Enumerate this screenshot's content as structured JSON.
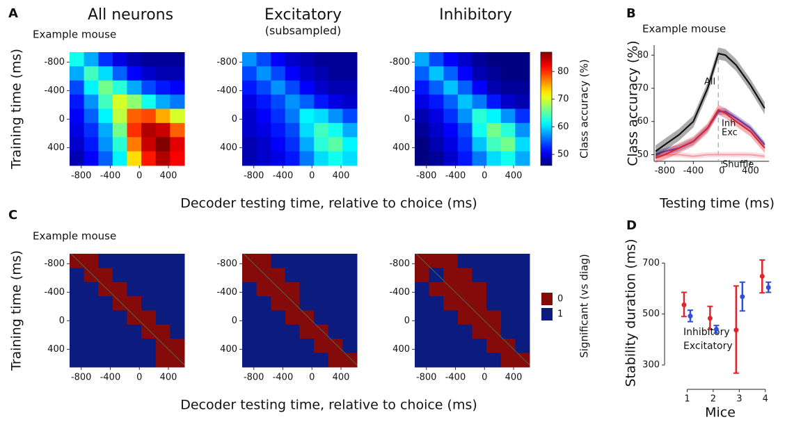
{
  "chart_data": [
    {
      "type": "heatmap",
      "panel": "A",
      "title": "All neurons",
      "title_color": "#000000",
      "annotation": "Example mouse",
      "ylabel": "Training time (ms)",
      "xlim": [
        -960,
        620
      ],
      "ylim": [
        -940,
        650
      ],
      "xticks": [
        -800,
        -400,
        0,
        400
      ],
      "yticks": [
        -800,
        -400,
        0,
        400
      ],
      "colormap": "jet",
      "zlim": [
        46,
        87
      ],
      "z": [
        [
          62,
          58,
          53,
          50,
          48,
          47,
          47,
          47
        ],
        [
          58,
          64,
          60,
          55,
          51,
          49,
          48,
          48
        ],
        [
          54,
          61,
          66,
          63,
          58,
          54,
          52,
          51
        ],
        [
          52,
          57,
          64,
          70,
          67,
          62,
          58,
          56
        ],
        [
          51,
          55,
          61,
          69,
          78,
          79,
          75,
          70
        ],
        [
          50,
          53,
          58,
          66,
          80,
          85,
          84,
          78
        ],
        [
          49,
          52,
          57,
          63,
          77,
          84,
          87,
          83
        ],
        [
          48,
          51,
          55,
          61,
          73,
          81,
          85,
          82
        ]
      ]
    },
    {
      "type": "heatmap",
      "title": "Excitatory",
      "subtitle": "(subsampled)",
      "title_color": "#3b45b0",
      "xlabel": "Decoder testing time, relative to choice (ms)",
      "xlim": [
        -960,
        620
      ],
      "ylim": [
        -940,
        650
      ],
      "xticks": [
        -800,
        -400,
        0,
        400
      ],
      "yticks": [
        -800,
        -400,
        0,
        400
      ],
      "colormap": "jet",
      "zlim": [
        46,
        87
      ],
      "z": [
        [
          57,
          54,
          51,
          49,
          48,
          47,
          47,
          47
        ],
        [
          54,
          57,
          54,
          51,
          49,
          48,
          47,
          47
        ],
        [
          52,
          54,
          57,
          54,
          51,
          49,
          48,
          48
        ],
        [
          50,
          52,
          54,
          57,
          55,
          52,
          50,
          49
        ],
        [
          49,
          51,
          53,
          56,
          61,
          60,
          57,
          54
        ],
        [
          49,
          50,
          52,
          54,
          60,
          64,
          62,
          58
        ],
        [
          48,
          49,
          51,
          53,
          58,
          63,
          65,
          61
        ],
        [
          48,
          49,
          50,
          52,
          56,
          60,
          62,
          60
        ]
      ]
    },
    {
      "type": "heatmap",
      "title": "Inhibitory",
      "title_color": "#e0242b",
      "xlim": [
        -960,
        620
      ],
      "ylim": [
        -940,
        650
      ],
      "xticks": [
        -800,
        -400,
        0,
        400
      ],
      "yticks": [
        -800,
        -400,
        0,
        400
      ],
      "colormap": "jet",
      "zlim": [
        46,
        87
      ],
      "z": [
        [
          58,
          54,
          51,
          49,
          47,
          46,
          46,
          46
        ],
        [
          55,
          59,
          55,
          51,
          48,
          47,
          46,
          46
        ],
        [
          52,
          55,
          59,
          55,
          51,
          48,
          47,
          47
        ],
        [
          50,
          52,
          55,
          59,
          56,
          52,
          49,
          48
        ],
        [
          48,
          50,
          53,
          57,
          63,
          61,
          57,
          53
        ],
        [
          47,
          49,
          51,
          54,
          62,
          66,
          63,
          57
        ],
        [
          46,
          48,
          50,
          53,
          59,
          64,
          66,
          60
        ],
        [
          46,
          47,
          49,
          52,
          56,
          60,
          62,
          58
        ]
      ]
    },
    {
      "type": "colorbar",
      "label": "Class accuracy (%)",
      "colormap": "jet",
      "zlim": [
        46,
        87
      ],
      "ticks": [
        50,
        60,
        70,
        80
      ]
    },
    {
      "type": "line",
      "panel": "B",
      "annotation": "Example mouse",
      "xlabel": "Testing time (ms)",
      "ylabel": "Class accuracy (%)",
      "xlim": [
        -950,
        660
      ],
      "ylim": [
        48,
        83
      ],
      "xticks": [
        -800,
        -400,
        0,
        400
      ],
      "yticks": [
        50,
        60,
        70,
        80
      ],
      "x": [
        -930,
        -800,
        -600,
        -400,
        -200,
        -50,
        50,
        200,
        400,
        600
      ],
      "series": [
        {
          "name": "All",
          "color": "#111111",
          "values": [
            51,
            53,
            56,
            60,
            70,
            80.5,
            80,
            77,
            71,
            64
          ],
          "errors": [
            1.8,
            1.8,
            1.8,
            1.8,
            1.8,
            1.8,
            1.8,
            1.8,
            1.8,
            1.8
          ]
        },
        {
          "name": "Inh",
          "color": "#e0242b",
          "values": [
            49,
            50,
            52,
            54,
            58,
            63.5,
            62.5,
            60,
            57,
            52
          ],
          "errors": [
            1.5,
            1.5,
            1.5,
            1.5,
            1.5,
            1.5,
            1.5,
            1.5,
            1.5,
            1.5
          ]
        },
        {
          "name": "Exc",
          "color": "#3b45c8",
          "values": [
            50,
            51,
            52,
            54,
            58,
            63,
            63,
            61,
            58,
            53
          ],
          "errors": [
            1,
            1,
            1,
            1,
            1,
            1,
            1,
            1,
            1,
            1
          ]
        },
        {
          "name": "Shuffle",
          "color": "#f2a0a8",
          "values": [
            49.5,
            50,
            50,
            49.5,
            50,
            50,
            50,
            50,
            50,
            49.5
          ],
          "errors": [
            0.8,
            0.8,
            0.8,
            0.8,
            0.8,
            0.8,
            0.8,
            0.8,
            0.8,
            0.8
          ]
        }
      ]
    },
    {
      "type": "heatmap",
      "panel": "C",
      "annotation": "Example mouse",
      "ylabel": "Training time (ms)",
      "diagonal": true,
      "xlim": [
        -960,
        620
      ],
      "ylim": [
        -940,
        650
      ],
      "xticks": [
        -800,
        -400,
        0,
        400
      ],
      "yticks": [
        -800,
        -400,
        0,
        400
      ],
      "colormap": "categorical",
      "colors": [
        "#850a0a",
        "#0c1c7e"
      ],
      "z": [
        [
          0,
          0,
          1,
          1,
          1,
          1,
          1,
          1
        ],
        [
          1,
          0,
          0,
          1,
          1,
          1,
          1,
          1
        ],
        [
          1,
          1,
          0,
          0,
          1,
          1,
          1,
          1
        ],
        [
          1,
          1,
          1,
          0,
          0,
          1,
          1,
          1
        ],
        [
          1,
          1,
          1,
          1,
          0,
          0,
          1,
          1
        ],
        [
          1,
          1,
          1,
          1,
          1,
          0,
          0,
          1
        ],
        [
          1,
          1,
          1,
          1,
          1,
          1,
          0,
          0
        ],
        [
          1,
          1,
          1,
          1,
          1,
          1,
          0,
          0
        ]
      ]
    },
    {
      "type": "heatmap",
      "xlabel": "Decoder testing time, relative to choice (ms)",
      "diagonal": true,
      "xlim": [
        -960,
        620
      ],
      "ylim": [
        -940,
        650
      ],
      "xticks": [
        -800,
        -400,
        0,
        400
      ],
      "yticks": [
        -800,
        -400,
        0,
        400
      ],
      "colormap": "categorical",
      "colors": [
        "#850a0a",
        "#0c1c7e"
      ],
      "z": [
        [
          0,
          0,
          1,
          1,
          1,
          1,
          1,
          1
        ],
        [
          0,
          0,
          0,
          1,
          1,
          1,
          1,
          1
        ],
        [
          1,
          0,
          0,
          0,
          1,
          1,
          1,
          1
        ],
        [
          1,
          1,
          0,
          0,
          1,
          1,
          1,
          1
        ],
        [
          1,
          1,
          1,
          0,
          0,
          1,
          1,
          1
        ],
        [
          1,
          1,
          1,
          1,
          0,
          0,
          1,
          1
        ],
        [
          1,
          1,
          1,
          1,
          1,
          0,
          0,
          1
        ],
        [
          1,
          1,
          1,
          1,
          1,
          1,
          0,
          0
        ]
      ]
    },
    {
      "type": "heatmap",
      "diagonal": true,
      "xlim": [
        -960,
        620
      ],
      "ylim": [
        -940,
        650
      ],
      "xticks": [
        -800,
        -400,
        0,
        400
      ],
      "yticks": [
        -800,
        -400,
        0,
        400
      ],
      "colormap": "categorical",
      "colors": [
        "#850a0a",
        "#0c1c7e"
      ],
      "z": [
        [
          0,
          0,
          0,
          1,
          1,
          1,
          1,
          1
        ],
        [
          0,
          1,
          0,
          0,
          1,
          1,
          1,
          1
        ],
        [
          1,
          0,
          0,
          0,
          0,
          1,
          1,
          1
        ],
        [
          1,
          1,
          0,
          0,
          0,
          1,
          1,
          1
        ],
        [
          1,
          1,
          1,
          0,
          0,
          0,
          1,
          1
        ],
        [
          1,
          1,
          1,
          1,
          0,
          0,
          1,
          1
        ],
        [
          1,
          1,
          1,
          1,
          1,
          0,
          0,
          1
        ],
        [
          1,
          1,
          1,
          1,
          1,
          1,
          0,
          0
        ]
      ]
    },
    {
      "type": "legend",
      "title": "Significant (vs diag)",
      "items": [
        {
          "label": "0",
          "color": "#850a0a"
        },
        {
          "label": "1",
          "color": "#0c1c7e"
        }
      ]
    },
    {
      "type": "errorbar",
      "panel": "D",
      "xlabel": "Mice",
      "ylabel": "Stability duration (ms)",
      "xlim": [
        0.4,
        4.3
      ],
      "ylim": [
        270,
        750
      ],
      "xticks": [
        1,
        2,
        3,
        4
      ],
      "yticks": [
        300,
        500,
        700
      ],
      "x": [
        1,
        2,
        3,
        4
      ],
      "series": [
        {
          "name": "Inhibitory",
          "color": "#e0242b",
          "values": [
            536,
            483,
            437,
            648
          ],
          "ci": [
            [
              490,
              585
            ],
            [
              440,
              530
            ],
            [
              268,
              610
            ],
            [
              583,
              712
            ]
          ]
        },
        {
          "name": "Excitatory",
          "color": "#2f4fd8",
          "values": [
            492,
            440,
            568,
            604
          ],
          "ci": [
            [
              470,
              515
            ],
            [
              425,
              455
            ],
            [
              512,
              625
            ],
            [
              585,
              625
            ]
          ]
        }
      ]
    }
  ]
}
